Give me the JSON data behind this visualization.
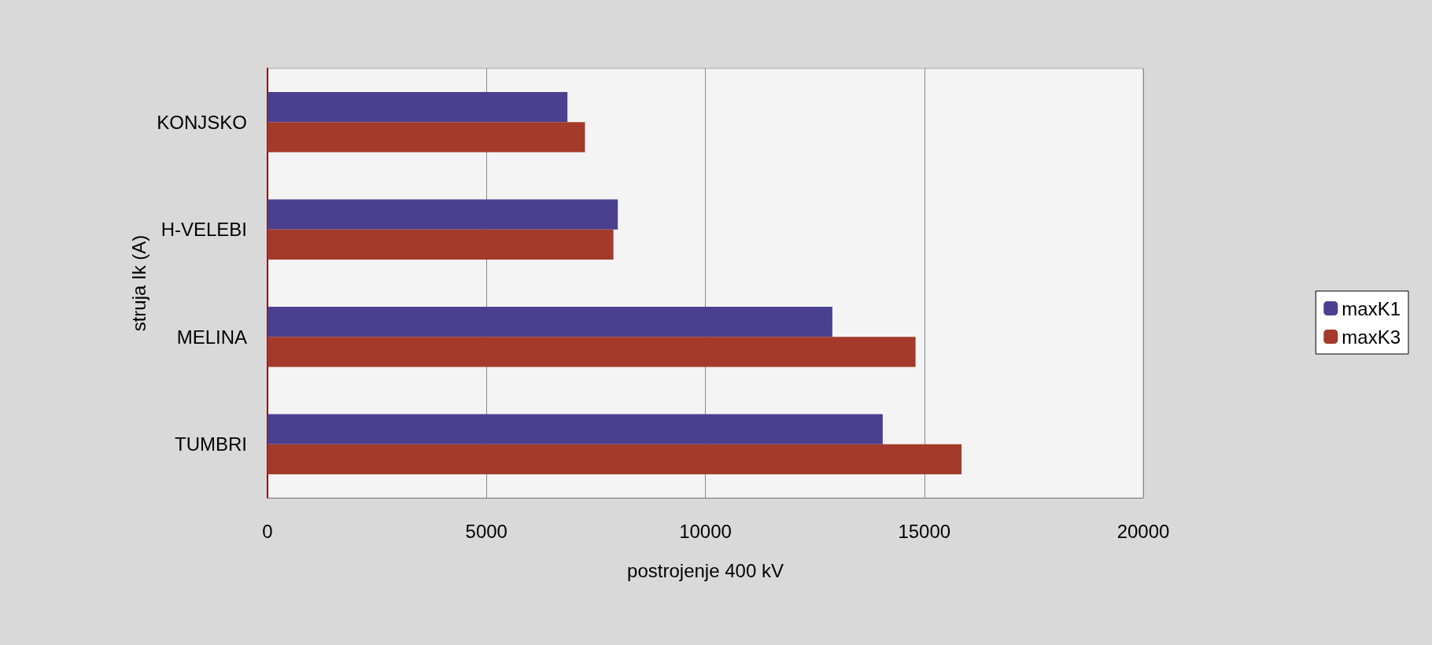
{
  "chart_data": {
    "type": "bar",
    "orientation": "horizontal",
    "xlabel": "postrojenje 400 kV",
    "ylabel": "struja Ik (A)",
    "categories": [
      "KONJSKO",
      "H-VELEBI",
      "MELINA",
      "TUMBRI"
    ],
    "series": [
      {
        "name": "maxK1",
        "color": "#4b3f8f",
        "values": [
          6850,
          8000,
          12900,
          14050
        ]
      },
      {
        "name": "maxK3",
        "color": "#a33a2a",
        "values": [
          7250,
          7900,
          14800,
          15850
        ]
      }
    ],
    "xlim": [
      0,
      20000
    ],
    "xticks": [
      0,
      5000,
      10000,
      15000,
      20000
    ],
    "grid": "x",
    "legend": "right"
  }
}
